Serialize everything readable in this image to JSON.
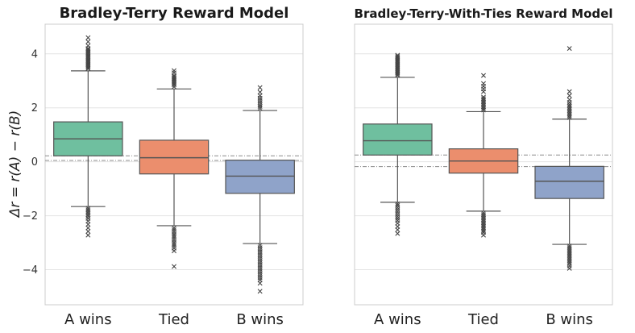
{
  "chart_data": [
    {
      "type": "box",
      "title": "Bradley-Terry Reward Model",
      "ylabel": "Δr = r(A) − r(B)",
      "categories": [
        "A wins",
        "Tied",
        "B wins"
      ],
      "ylim": [
        -5.3,
        5.1
      ],
      "yticks": [
        -4,
        -2,
        0,
        2,
        4
      ],
      "ytick_labels": [
        "−4",
        "−2",
        "0",
        "2",
        "4"
      ],
      "grid": true,
      "reference_lines": [
        0.22,
        0.05
      ],
      "boxes": [
        {
          "category": "A wins",
          "color": "#6fbf9f",
          "q1": 0.22,
          "median": 0.85,
          "q3": 1.48,
          "whisker_low": -1.66,
          "whisker_high": 3.37,
          "outliers": [
            3.45,
            3.5,
            3.55,
            3.6,
            3.65,
            3.7,
            3.75,
            3.8,
            3.85,
            3.9,
            3.95,
            4.0,
            4.05,
            4.1,
            4.15,
            4.2,
            4.3,
            4.45,
            4.6,
            -1.72,
            -1.78,
            -1.84,
            -1.9,
            -1.96,
            -2.02,
            -2.1,
            -2.2,
            -2.32,
            -2.45,
            -2.58,
            -2.72
          ]
        },
        {
          "category": "Tied",
          "color": "#eb8e6d",
          "q1": -0.45,
          "median": 0.15,
          "q3": 0.8,
          "whisker_low": -2.37,
          "whisker_high": 2.7,
          "outliers": [
            2.78,
            2.85,
            2.9,
            2.95,
            3.0,
            3.05,
            3.1,
            3.15,
            3.2,
            3.3,
            3.38,
            -2.45,
            -2.52,
            -2.6,
            -2.68,
            -2.75,
            -2.82,
            -2.9,
            -2.98,
            -3.05,
            -3.12,
            -3.2,
            -3.3,
            -3.88
          ]
        },
        {
          "category": "B wins",
          "color": "#8fa3c9",
          "q1": -1.17,
          "median": -0.53,
          "q3": 0.06,
          "whisker_low": -3.03,
          "whisker_high": 1.9,
          "outliers": [
            1.98,
            2.05,
            2.12,
            2.2,
            2.28,
            2.36,
            2.45,
            2.58,
            2.75,
            -3.1,
            -3.18,
            -3.26,
            -3.34,
            -3.42,
            -3.5,
            -3.58,
            -3.66,
            -3.74,
            -3.82,
            -3.9,
            -3.98,
            -4.06,
            -4.14,
            -4.22,
            -4.3,
            -4.38,
            -4.5,
            -4.8
          ]
        }
      ]
    },
    {
      "type": "box",
      "title": "Bradley-Terry-With-Ties Reward Model",
      "categories": [
        "A wins",
        "Tied",
        "B wins"
      ],
      "ylim": [
        -5.3,
        5.1
      ],
      "grid": true,
      "reference_lines": [
        0.25,
        -0.18
      ],
      "boxes": [
        {
          "category": "A wins",
          "color": "#6fbf9f",
          "q1": 0.25,
          "median": 0.78,
          "q3": 1.4,
          "whisker_low": -1.5,
          "whisker_high": 3.13,
          "outliers": [
            3.2,
            3.25,
            3.3,
            3.35,
            3.4,
            3.45,
            3.5,
            3.55,
            3.6,
            3.65,
            3.7,
            3.75,
            3.8,
            3.85,
            3.9,
            3.95,
            -1.56,
            -1.62,
            -1.7,
            -1.78,
            -1.86,
            -1.94,
            -2.02,
            -2.1,
            -2.18,
            -2.28,
            -2.4,
            -2.52,
            -2.66
          ]
        },
        {
          "category": "Tied",
          "color": "#eb8e6d",
          "q1": -0.42,
          "median": 0.03,
          "q3": 0.48,
          "whisker_low": -1.83,
          "whisker_high": 1.86,
          "outliers": [
            1.92,
            1.98,
            2.04,
            2.1,
            2.16,
            2.22,
            2.28,
            2.34,
            2.4,
            2.6,
            2.7,
            2.8,
            2.9,
            3.2,
            -1.9,
            -1.96,
            -2.02,
            -2.08,
            -2.14,
            -2.2,
            -2.26,
            -2.32,
            -2.38,
            -2.44,
            -2.5,
            -2.56,
            -2.62,
            -2.72
          ]
        },
        {
          "category": "B wins",
          "color": "#8fa3c9",
          "q1": -1.36,
          "median": -0.72,
          "q3": -0.17,
          "whisker_low": -3.06,
          "whisker_high": 1.58,
          "outliers": [
            1.64,
            1.7,
            1.76,
            1.82,
            1.88,
            1.94,
            2.0,
            2.06,
            2.12,
            2.2,
            2.3,
            2.45,
            2.6,
            4.2,
            -3.12,
            -3.18,
            -3.24,
            -3.3,
            -3.36,
            -3.42,
            -3.48,
            -3.54,
            -3.6,
            -3.66,
            -3.72,
            -3.78,
            -3.86,
            -3.95
          ]
        }
      ]
    }
  ]
}
